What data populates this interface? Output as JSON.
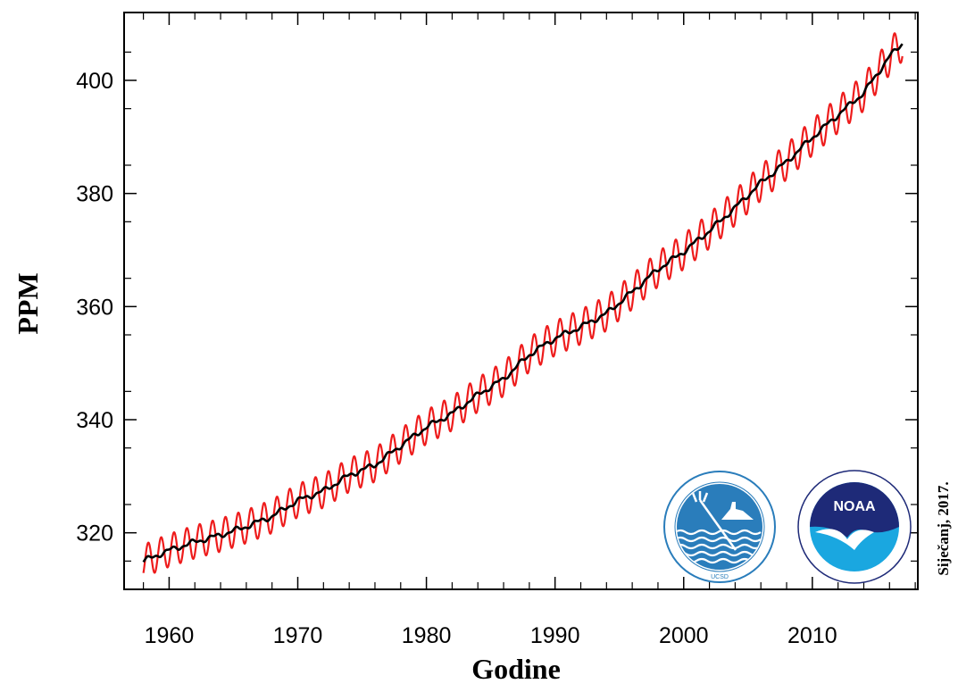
{
  "chart_data": {
    "type": "line",
    "title": "",
    "xlabel": "Godine",
    "ylabel": "PPM",
    "xlim": [
      1956.5,
      2018.2
    ],
    "ylim": [
      310,
      412
    ],
    "x_ticks": [
      1960,
      1970,
      1980,
      1990,
      2000,
      2010
    ],
    "y_ticks": [
      320,
      340,
      360,
      380,
      400
    ],
    "grid": false,
    "legend": "none",
    "series": [
      {
        "color": "#ee1c1c",
        "style": "monthly values with seasonal cycle",
        "seasonal_amplitude_ppm": [
          2.9,
          3.2
        ],
        "x": [
          1958,
          1960,
          1962,
          1964,
          1966,
          1968,
          1970,
          1972,
          1974,
          1976,
          1978,
          1980,
          1982,
          1984,
          1986,
          1988,
          1990,
          1992,
          1994,
          1996,
          1998,
          2000,
          2002,
          2004,
          2006,
          2008,
          2010,
          2012,
          2014,
          2016,
          2017
        ],
        "y": [
          315,
          316.9,
          318.4,
          319.6,
          321.1,
          322.9,
          325.7,
          327.4,
          330.2,
          332.0,
          335.4,
          338.7,
          341.1,
          344.4,
          347.2,
          351.5,
          354.4,
          356.4,
          358.8,
          362.6,
          366.6,
          369.7,
          373.4,
          377.5,
          381.9,
          385.6,
          389.9,
          393.9,
          397.8,
          404.2,
          406.6
        ]
      },
      {
        "color": "#000000",
        "style": "seasonally adjusted trend",
        "x": [
          1958,
          1960,
          1962,
          1964,
          1966,
          1968,
          1970,
          1972,
          1974,
          1976,
          1978,
          1980,
          1982,
          1984,
          1986,
          1988,
          1990,
          1992,
          1994,
          1996,
          1998,
          2000,
          2002,
          2004,
          2006,
          2008,
          2010,
          2012,
          2014,
          2016,
          2017
        ],
        "y": [
          315,
          316.9,
          318.4,
          319.6,
          321.1,
          322.9,
          325.7,
          327.4,
          330.2,
          332.0,
          335.4,
          338.7,
          341.1,
          344.4,
          347.2,
          351.5,
          354.4,
          356.4,
          358.8,
          362.6,
          366.6,
          369.7,
          373.4,
          377.5,
          381.9,
          385.6,
          389.9,
          393.9,
          397.8,
          404.2,
          406.6
        ]
      }
    ]
  },
  "credit": "Siječanj, 2017.",
  "logos": [
    {
      "name": "scripps-ucsd-logo",
      "colors": {
        "primary": "#2a7dbb",
        "text": "UCSD"
      }
    },
    {
      "name": "noaa-logo",
      "colors": {
        "navy": "#1e2a78",
        "cyan": "#1aa7e0",
        "text": "NOAA"
      }
    }
  ]
}
